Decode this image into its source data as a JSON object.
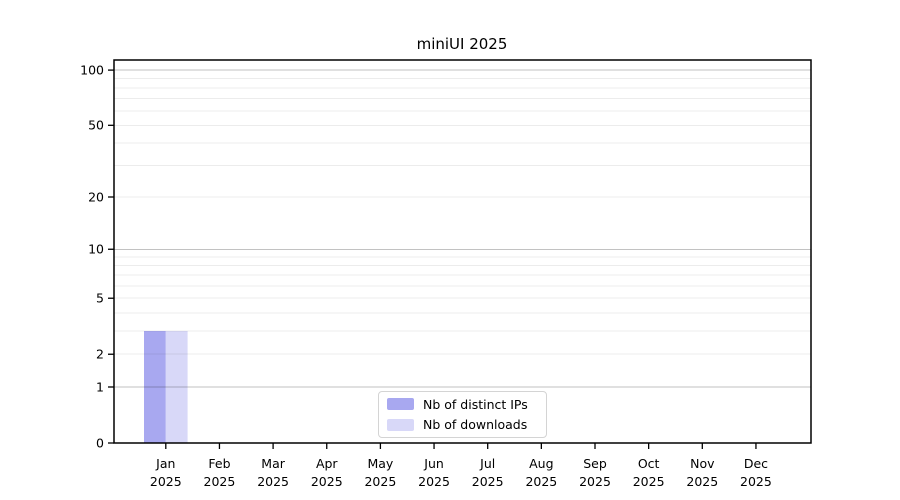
{
  "chart_data": {
    "type": "bar",
    "title": "miniUI 2025",
    "categories": [
      "Jan",
      "Feb",
      "Mar",
      "Apr",
      "May",
      "Jun",
      "Jul",
      "Aug",
      "Sep",
      "Oct",
      "Nov",
      "Dec"
    ],
    "category_year": "2025",
    "series": [
      {
        "name": "Nb of distinct IPs",
        "color": "#a8a8f0",
        "values": [
          3,
          0,
          0,
          0,
          0,
          0,
          0,
          0,
          0,
          0,
          0,
          0
        ]
      },
      {
        "name": "Nb of downloads",
        "color": "#d8d8f8",
        "values": [
          3,
          0,
          0,
          0,
          0,
          0,
          0,
          0,
          0,
          0,
          0,
          0
        ]
      }
    ],
    "xlabel": "",
    "ylabel": "",
    "y_axis": {
      "scale": "log1p",
      "tick_values": [
        0,
        1,
        2,
        5,
        10,
        20,
        50,
        100
      ],
      "tick_labels": [
        "0",
        "1",
        "2",
        "5",
        "10",
        "20",
        "50",
        "100"
      ],
      "major_gridlines": [
        1,
        10,
        100
      ],
      "minor_gridlines": [
        2,
        3,
        4,
        5,
        6,
        7,
        8,
        9,
        20,
        30,
        40,
        50,
        60,
        70,
        80,
        90
      ],
      "range": [
        0,
        117
      ]
    },
    "legend_position": "inside-bottom-center",
    "grid": true
  },
  "colors": {
    "axis": "#000000",
    "text": "#000000",
    "grid_minor": "rgba(0,0,0,0.075)",
    "grid_major": "rgba(0,0,0,0.24)",
    "background": "#ffffff"
  }
}
